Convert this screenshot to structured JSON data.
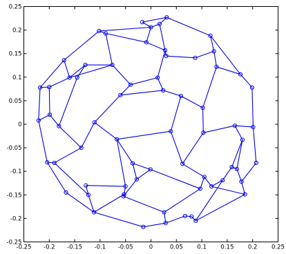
{
  "chart_data": {
    "type": "scatter",
    "description_style": "graph of nodes (circle markers) connected by line segments",
    "xlim": [
      -0.25,
      0.25
    ],
    "ylim": [
      -0.25,
      0.25
    ],
    "xticks": [
      -0.25,
      -0.2,
      -0.15,
      -0.1,
      -0.05,
      0,
      0.05,
      0.1,
      0.15,
      0.2,
      0.25
    ],
    "yticks": [
      -0.25,
      -0.2,
      -0.15,
      -0.1,
      -0.05,
      0,
      0.05,
      0.1,
      0.15,
      0.2,
      0.25
    ],
    "xtick_labels": [
      "-0.25",
      "-0.2",
      "-0.15",
      "-0.1",
      "-0.05",
      "0",
      "0.05",
      "0.1",
      "0.15",
      "0.2",
      "0.25"
    ],
    "ytick_labels": [
      "-0.25",
      "-0.2",
      "-0.15",
      "-0.1",
      "-0.05",
      "0",
      "0.05",
      "0.1",
      "0.15",
      "0.2",
      "0.25"
    ],
    "grid": false,
    "line_color": "#0000e6",
    "marker": "circle",
    "nodes": [
      [
        -0.218,
        0.078
      ],
      [
        -0.2,
        0.079
      ],
      [
        -0.171,
        0.136
      ],
      [
        -0.16,
        0.099
      ],
      [
        -0.102,
        0.198
      ],
      [
        -0.089,
        0.193
      ],
      [
        -0.076,
        0.126
      ],
      [
        -0.04,
        0.084
      ],
      [
        -0.017,
        0.217
      ],
      [
        -0.009,
        0.174
      ],
      [
        0.0,
        0.206
      ],
      [
        0.017,
        0.213
      ],
      [
        0.031,
        0.227
      ],
      [
        -0.129,
        0.126
      ],
      [
        -0.145,
        0.099
      ],
      [
        0.013,
        0.099
      ],
      [
        0.028,
        0.157
      ],
      [
        0.03,
        0.145
      ],
      [
        0.087,
        0.141
      ],
      [
        0.117,
        0.188
      ],
      [
        0.124,
        0.155
      ],
      [
        0.129,
        0.122
      ],
      [
        0.176,
        0.106
      ],
      [
        0.199,
        0.078
      ],
      [
        -0.221,
        0.008
      ],
      [
        -0.199,
        0.02
      ],
      [
        -0.181,
        -0.004
      ],
      [
        -0.204,
        -0.081
      ],
      [
        -0.19,
        -0.082
      ],
      [
        -0.167,
        -0.145
      ],
      [
        -0.137,
        -0.05
      ],
      [
        -0.111,
        0.004
      ],
      [
        -0.067,
        -0.032
      ],
      [
        -0.06,
        0.062
      ],
      [
        0.024,
        0.072
      ],
      [
        0.059,
        0.06
      ],
      [
        0.039,
        -0.015
      ],
      [
        -0.036,
        -0.083
      ],
      [
        0.062,
        -0.084
      ],
      [
        0.102,
        0.035
      ],
      [
        0.103,
        -0.018
      ],
      [
        0.165,
        -0.003
      ],
      [
        0.201,
        -0.006
      ],
      [
        0.18,
        -0.033
      ],
      [
        0.169,
        -0.095
      ],
      [
        0.178,
        -0.122
      ],
      [
        0.185,
        -0.149
      ],
      [
        0.207,
        -0.082
      ],
      [
        -0.123,
        -0.15
      ],
      [
        -0.128,
        -0.13
      ],
      [
        -0.053,
        -0.149
      ],
      [
        -0.05,
        -0.132
      ],
      [
        -0.001,
        -0.096
      ],
      [
        0.097,
        -0.137
      ],
      [
        0.105,
        -0.112
      ],
      [
        0.119,
        -0.132
      ],
      [
        0.141,
        -0.119
      ],
      [
        0.159,
        -0.091
      ],
      [
        -0.112,
        -0.187
      ],
      [
        -0.015,
        -0.218
      ],
      [
        0.026,
        -0.187
      ],
      [
        0.029,
        -0.21
      ],
      [
        0.067,
        -0.195
      ],
      [
        0.08,
        -0.196
      ],
      [
        0.088,
        -0.205
      ],
      [
        -0.028,
        -0.117
      ],
      [
        -0.054,
        -0.153
      ]
    ],
    "edges": [
      [
        0,
        1
      ],
      [
        0,
        2
      ],
      [
        0,
        24
      ],
      [
        1,
        3
      ],
      [
        1,
        25
      ],
      [
        2,
        4
      ],
      [
        2,
        3
      ],
      [
        3,
        6
      ],
      [
        4,
        5
      ],
      [
        4,
        10
      ],
      [
        5,
        6
      ],
      [
        5,
        9
      ],
      [
        6,
        13
      ],
      [
        7,
        6
      ],
      [
        7,
        15
      ],
      [
        7,
        33
      ],
      [
        8,
        10
      ],
      [
        8,
        12
      ],
      [
        9,
        10
      ],
      [
        9,
        16
      ],
      [
        10,
        11
      ],
      [
        11,
        12
      ],
      [
        11,
        17
      ],
      [
        12,
        19
      ],
      [
        13,
        14
      ],
      [
        13,
        3
      ],
      [
        14,
        26
      ],
      [
        15,
        16
      ],
      [
        15,
        34
      ],
      [
        16,
        17
      ],
      [
        17,
        18
      ],
      [
        18,
        20
      ],
      [
        19,
        20
      ],
      [
        19,
        22
      ],
      [
        20,
        21
      ],
      [
        21,
        22
      ],
      [
        21,
        39
      ],
      [
        22,
        23
      ],
      [
        23,
        42
      ],
      [
        24,
        27
      ],
      [
        24,
        25
      ],
      [
        25,
        26
      ],
      [
        26,
        30
      ],
      [
        27,
        28
      ],
      [
        27,
        29
      ],
      [
        28,
        30
      ],
      [
        28,
        48
      ],
      [
        29,
        58
      ],
      [
        30,
        31
      ],
      [
        31,
        33
      ],
      [
        31,
        32
      ],
      [
        32,
        37
      ],
      [
        32,
        36
      ],
      [
        33,
        34
      ],
      [
        34,
        35
      ],
      [
        35,
        36
      ],
      [
        35,
        39
      ],
      [
        36,
        38
      ],
      [
        37,
        65
      ],
      [
        37,
        52
      ],
      [
        38,
        40
      ],
      [
        38,
        54
      ],
      [
        39,
        40
      ],
      [
        40,
        41
      ],
      [
        41,
        42
      ],
      [
        41,
        43
      ],
      [
        42,
        47
      ],
      [
        43,
        44
      ],
      [
        44,
        45
      ],
      [
        44,
        57
      ],
      [
        45,
        46
      ],
      [
        45,
        47
      ],
      [
        46,
        55
      ],
      [
        48,
        49
      ],
      [
        48,
        58
      ],
      [
        49,
        51
      ],
      [
        50,
        51
      ],
      [
        50,
        58
      ],
      [
        50,
        66
      ],
      [
        51,
        32
      ],
      [
        52,
        53
      ],
      [
        53,
        54
      ],
      [
        53,
        60
      ],
      [
        54,
        55
      ],
      [
        55,
        56
      ],
      [
        56,
        57
      ],
      [
        56,
        64
      ],
      [
        57,
        43
      ],
      [
        58,
        59
      ],
      [
        59,
        61
      ],
      [
        60,
        61
      ],
      [
        60,
        66
      ],
      [
        61,
        62
      ],
      [
        62,
        63
      ],
      [
        63,
        64
      ],
      [
        64,
        46
      ],
      [
        65,
        66
      ],
      [
        65,
        52
      ]
    ]
  }
}
